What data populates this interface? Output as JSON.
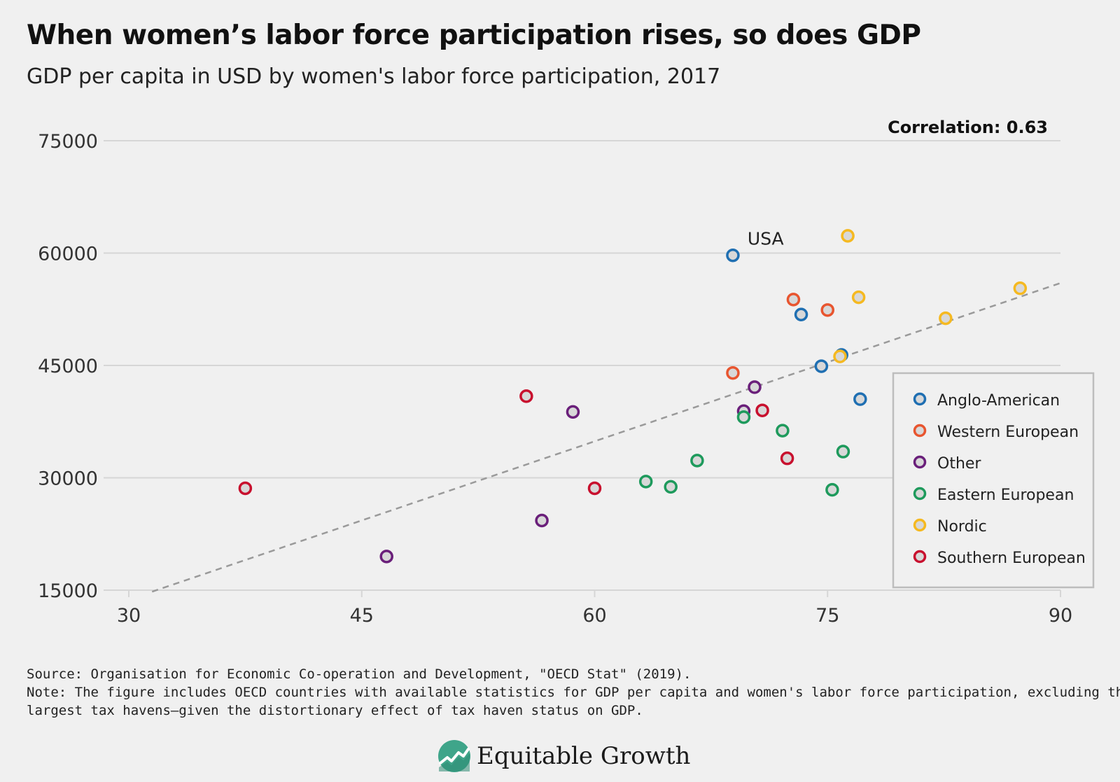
{
  "header": {
    "title": "When women’s labor force participation rises, so does GDP",
    "subtitle": "GDP per capita in USD by women's labor force participation, 2017"
  },
  "chart_data": {
    "type": "scatter",
    "title": "When women’s labor force participation rises, so does GDP",
    "subtitle": "GDP per capita in USD by women's labor force participation, 2017",
    "xlabel": "",
    "ylabel": "",
    "xlim": [
      30,
      90
    ],
    "ylim": [
      15000,
      75000
    ],
    "x_ticks": [
      "30",
      "45",
      "60",
      "75",
      "90"
    ],
    "y_ticks": [
      "75000",
      "60000",
      "45000",
      "30000",
      "15000"
    ],
    "grid": "horizontal",
    "legend_position": "right",
    "correlation_label": "Correlation: 0.63",
    "trendline": {
      "style": "dashed",
      "color": "#9a9a9a",
      "x": [
        31.5,
        90
      ],
      "y": [
        14800,
        56000
      ]
    },
    "annotations": [
      {
        "text": "USA",
        "series": "Anglo-American",
        "x": 68.9,
        "y": 59700
      }
    ],
    "series": [
      {
        "name": "Anglo-American",
        "color": "#1f6fb2",
        "points": [
          [
            68.9,
            59700
          ],
          [
            73.3,
            51800
          ],
          [
            74.6,
            44900
          ],
          [
            75.9,
            46400
          ],
          [
            77.1,
            40500
          ]
        ]
      },
      {
        "name": "Western European",
        "color": "#e8552f",
        "points": [
          [
            68.9,
            44000
          ],
          [
            72.8,
            53800
          ],
          [
            75.0,
            52400
          ]
        ]
      },
      {
        "name": "Other",
        "color": "#6a1f7a",
        "points": [
          [
            46.6,
            19500
          ],
          [
            56.6,
            24300
          ],
          [
            58.6,
            38800
          ],
          [
            69.6,
            38900
          ],
          [
            70.3,
            42100
          ]
        ]
      },
      {
        "name": "Eastern European",
        "color": "#1e9a5c",
        "points": [
          [
            63.3,
            29500
          ],
          [
            64.9,
            28800
          ],
          [
            66.6,
            32300
          ],
          [
            69.6,
            38100
          ],
          [
            72.1,
            36300
          ],
          [
            75.3,
            28400
          ],
          [
            76.0,
            33500
          ]
        ]
      },
      {
        "name": "Nordic",
        "color": "#f5b921",
        "points": [
          [
            76.3,
            62300
          ],
          [
            77.0,
            54100
          ],
          [
            75.8,
            46200
          ],
          [
            82.6,
            51300
          ],
          [
            87.4,
            55300
          ]
        ]
      },
      {
        "name": "Southern European",
        "color": "#c8102e",
        "points": [
          [
            37.5,
            28600
          ],
          [
            55.6,
            40900
          ],
          [
            60.0,
            28600
          ],
          [
            70.8,
            39000
          ],
          [
            72.4,
            32600
          ]
        ]
      }
    ]
  },
  "footer": {
    "source": "Source: Organisation for Economic Co-operation and Development, \"OECD Stat\" (2019).",
    "note_line1": "Note: The figure includes OECD countries with available statistics for GDP per capita and women's labor force participation, excluding the",
    "note_line2": "largest tax havens—given the distortionary effect of tax haven status on GDP."
  },
  "logo": {
    "text": "Equitable Growth",
    "icon": "equitable-growth-logo-icon",
    "color": "#3fa58a"
  }
}
